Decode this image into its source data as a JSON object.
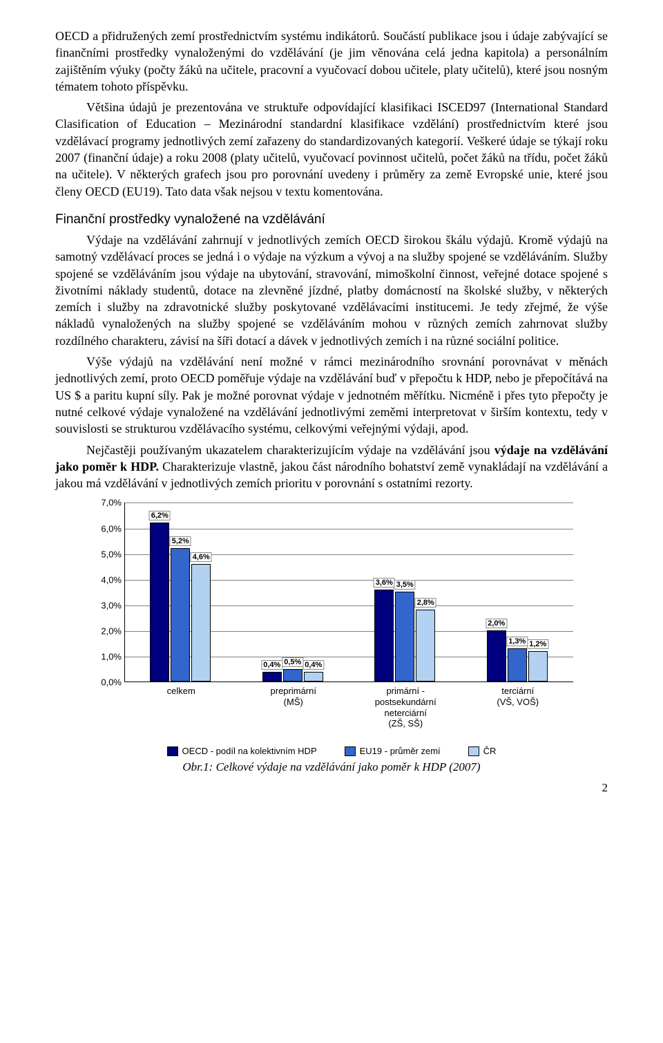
{
  "para1": "OECD a přidružených zemí prostřednictvím systému indikátorů. Součástí publikace jsou i údaje zabývající se finančními prostředky vynaloženými do vzdělávání (je jim věnována celá jedna kapitola) a personálním zajištěním výuky (počty žáků na učitele, pracovní a vyučovací dobou učitele, platy učitelů), které jsou nosným tématem tohoto příspěvku.",
  "para2": "Většina údajů je prezentována ve struktuře odpovídající klasifikaci ISCED97 (International Standard Clasification of Education – Mezinárodní standardní klasifikace vzdělání) prostřednictvím které jsou vzdělávací programy jednotlivých zemí zařazeny do standardizovaných kategorií. Veškeré údaje se týkají roku 2007 (finanční údaje) a roku 2008 (platy učitelů, vyučovací povinnost učitelů, počet žáků na třídu, počet žáků na učitele). V některých grafech jsou pro porovnání uvedeny i průměry za země Evropské unie, které jsou členy OECD (EU19). Tato data však nejsou v textu komentována.",
  "section_heading": "Finanční prostředky vynaložené na vzdělávání",
  "para3": "Výdaje na vzdělávání zahrnují v jednotlivých zemích OECD širokou škálu výdajů. Kromě výdajů na samotný vzdělávací proces se jedná i o výdaje na výzkum a vývoj a na služby spojené se vzděláváním. Služby spojené se vzděláváním jsou výdaje na ubytování, stravování, mimoškolní činnost, veřejné dotace spojené s životními náklady studentů, dotace na zlevněné jízdné, platby domácností na školské služby, v některých zemích i služby na zdravotnické služby poskytované vzdělávacími institucemi. Je tedy zřejmé, že výše nákladů vynaložených na služby spojené se vzděláváním mohou v různých zemích zahrnovat služby rozdílného charakteru, závisí na šíři dotací a dávek v jednotlivých zemích i na různé sociální politice.",
  "para4": "Výše výdajů na vzdělávání není možné v rámci mezinárodního srovnání porovnávat v měnách jednotlivých zemí, proto OECD poměřuje výdaje na vzdělávání buď v přepočtu k HDP, nebo je přepočítává na US $ a paritu kupní síly. Pak je možné porovnat výdaje v jednotném měřítku. Nicméně i přes tyto přepočty je nutné celkové výdaje vynaložené na vzdělávání jednotlivými zeměmi interpretovat v širším kontextu, tedy v souvislosti se strukturou vzdělávacího systému, celkovými veřejnými výdaji, apod.",
  "para5_prefix": "Nejčastěji používaným ukazatelem charakterizujícím výdaje na vzdělávání jsou ",
  "para5_bold": "výdaje na vzdělávání jako poměr k HDP.",
  "para5_suffix": " Charakterizuje vlastně, jakou část národního bohatství země vynakládají na vzdělávání a jakou má vzdělávání v jednotlivých zemích prioritu v porovnání s ostatními rezorty.",
  "chart": {
    "ymax": 7.0,
    "ytick_step": 1.0,
    "yticks": [
      "0,0%",
      "1,0%",
      "2,0%",
      "3,0%",
      "4,0%",
      "5,0%",
      "6,0%",
      "7,0%"
    ],
    "grid_color": "#7f7f7f",
    "colors": {
      "oecd": "#000080",
      "eu19": "#3366cc",
      "cr": "#b3d1f0"
    },
    "categories": [
      {
        "label": "celkem",
        "bars": [
          {
            "series": "oecd",
            "value": 6.2,
            "label": "6,2%"
          },
          {
            "series": "eu19",
            "value": 5.2,
            "label": "5,2%"
          },
          {
            "series": "cr",
            "value": 4.6,
            "label": "4,6%"
          }
        ]
      },
      {
        "label": "preprimární\n(MŠ)",
        "bars": [
          {
            "series": "oecd",
            "value": 0.4,
            "label": "0,4%"
          },
          {
            "series": "eu19",
            "value": 0.5,
            "label": "0,5%"
          },
          {
            "series": "cr",
            "value": 0.4,
            "label": "0,4%"
          }
        ]
      },
      {
        "label": "primární - postsekundární\nneterciární\n(ZŠ, SŠ)",
        "bars": [
          {
            "series": "oecd",
            "value": 3.6,
            "label": "3,6%"
          },
          {
            "series": "eu19",
            "value": 3.5,
            "label": "3,5%"
          },
          {
            "series": "cr",
            "value": 2.8,
            "label": "2,8%"
          }
        ]
      },
      {
        "label": "terciární\n(VŠ, VOŠ)",
        "bars": [
          {
            "series": "oecd",
            "value": 2.0,
            "label": "2,0%"
          },
          {
            "series": "eu19",
            "value": 1.3,
            "label": "1,3%"
          },
          {
            "series": "cr",
            "value": 1.2,
            "label": "1,2%"
          }
        ]
      }
    ],
    "legend": [
      {
        "label": "OECD - podíl na kolektivním HDP",
        "color": "#000080"
      },
      {
        "label": "EU19 - průměr zemí",
        "color": "#3366cc"
      },
      {
        "label": "ČR",
        "color": "#b3d1f0"
      }
    ]
  },
  "caption": "Obr.1: Celkové výdaje na vzdělávání jako poměr k  HDP (2007)",
  "page_number": "2"
}
